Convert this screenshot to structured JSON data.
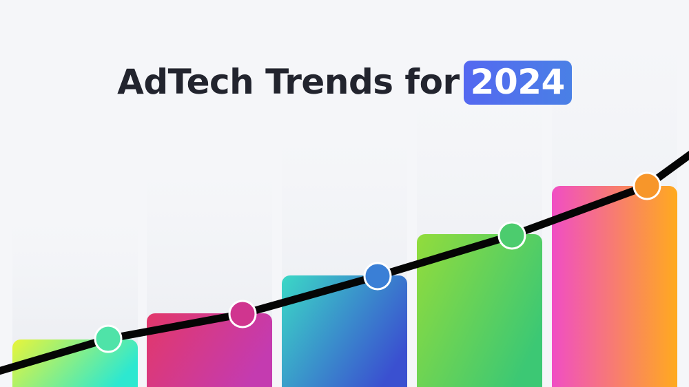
{
  "header": {
    "title": "AdTech Trends for",
    "highlight": "2024"
  }
}
